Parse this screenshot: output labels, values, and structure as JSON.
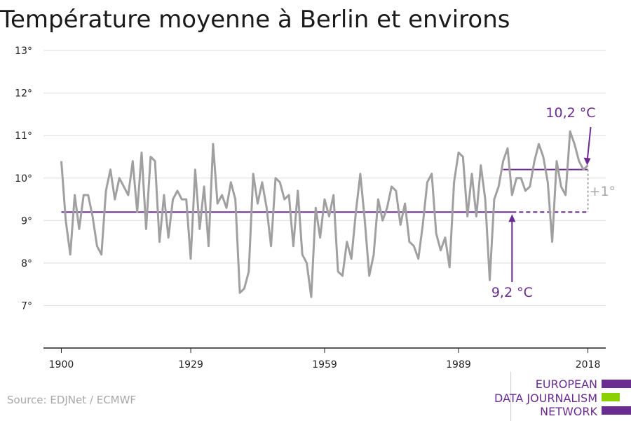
{
  "title": "Température moyenne à Berlin et environs",
  "source": "Source: EDJNet / ECMWF",
  "logo": {
    "lines": [
      "EUROPEAN",
      "DATA JOURNALISM",
      "NETWORK"
    ],
    "colors": [
      "#6a2c91",
      "#8bd100",
      "#6a2c91"
    ]
  },
  "chart_data": {
    "type": "line",
    "title": "Température moyenne à Berlin et environs",
    "x_ticks": [
      1900,
      1929,
      1959,
      1989,
      2018
    ],
    "y_ticks": [
      7,
      8,
      9,
      10,
      11,
      12,
      13
    ],
    "y_tick_labels": [
      "7°",
      "8°",
      "9°",
      "10°",
      "11°",
      "12°",
      "13°"
    ],
    "xlim": [
      1896,
      2022
    ],
    "ylim": [
      6.0,
      13.2
    ],
    "grid": true,
    "series": [
      {
        "color": "#a0a0a0",
        "x": [
          1900,
          1901,
          1902,
          1903,
          1904,
          1905,
          1906,
          1907,
          1908,
          1909,
          1910,
          1911,
          1912,
          1913,
          1914,
          1915,
          1916,
          1917,
          1918,
          1919,
          1920,
          1921,
          1922,
          1923,
          1924,
          1925,
          1926,
          1927,
          1928,
          1929,
          1930,
          1931,
          1932,
          1933,
          1934,
          1935,
          1936,
          1937,
          1938,
          1939,
          1940,
          1941,
          1942,
          1943,
          1944,
          1945,
          1946,
          1947,
          1948,
          1949,
          1950,
          1951,
          1952,
          1953,
          1954,
          1955,
          1956,
          1957,
          1958,
          1959,
          1960,
          1961,
          1962,
          1963,
          1964,
          1965,
          1966,
          1967,
          1968,
          1969,
          1970,
          1971,
          1972,
          1973,
          1974,
          1975,
          1976,
          1977,
          1978,
          1979,
          1980,
          1981,
          1982,
          1983,
          1984,
          1985,
          1986,
          1987,
          1988,
          1989,
          1990,
          1991,
          1992,
          1993,
          1994,
          1995,
          1996,
          1997,
          1998,
          1999,
          2000,
          2001,
          2002,
          2003,
          2004,
          2005,
          2006,
          2007,
          2008,
          2009,
          2010,
          2011,
          2012,
          2013,
          2014,
          2015,
          2016,
          2017,
          2018
        ],
        "values": [
          10.4,
          9.0,
          8.2,
          9.6,
          8.8,
          9.6,
          9.6,
          9.1,
          8.4,
          8.2,
          9.7,
          10.2,
          9.5,
          10.0,
          9.8,
          9.6,
          10.4,
          9.2,
          10.6,
          8.8,
          10.5,
          10.4,
          8.5,
          9.6,
          8.6,
          9.5,
          9.7,
          9.5,
          9.5,
          8.1,
          10.2,
          8.8,
          9.8,
          8.4,
          10.8,
          9.4,
          9.6,
          9.3,
          9.9,
          9.5,
          7.3,
          7.4,
          7.8,
          10.1,
          9.4,
          9.9,
          9.3,
          8.4,
          10.0,
          9.9,
          9.5,
          9.6,
          8.4,
          9.7,
          8.2,
          8.0,
          7.2,
          9.3,
          8.6,
          9.5,
          9.1,
          9.6,
          7.8,
          7.7,
          8.5,
          8.1,
          9.2,
          10.1,
          9.0,
          7.7,
          8.2,
          9.5,
          9.0,
          9.3,
          9.8,
          9.7,
          8.9,
          9.4,
          8.5,
          8.4,
          8.1,
          8.9,
          9.9,
          10.1,
          8.7,
          8.3,
          8.6,
          7.9,
          9.9,
          10.6,
          10.5,
          9.1,
          10.1,
          9.1,
          10.3,
          9.5,
          7.6,
          9.5,
          9.8,
          10.4,
          10.7,
          9.6,
          10.0,
          10.0,
          9.7,
          9.8,
          10.4,
          10.8,
          10.5,
          9.9,
          8.5,
          10.4,
          9.8,
          9.6,
          11.1,
          10.8,
          10.4,
          10.2,
          10.3
        ]
      }
    ],
    "reference_lines": [
      {
        "label": "9,2 °C",
        "value": 9.2,
        "x_start": 1900,
        "x_end": 2018,
        "dashed_from": 2001,
        "color": "#6a2c91"
      },
      {
        "label": "10,2 °C",
        "value": 10.2,
        "x_start": 1999,
        "x_end": 2018,
        "color": "#6a2c91"
      }
    ],
    "difference_label": "+1°"
  }
}
